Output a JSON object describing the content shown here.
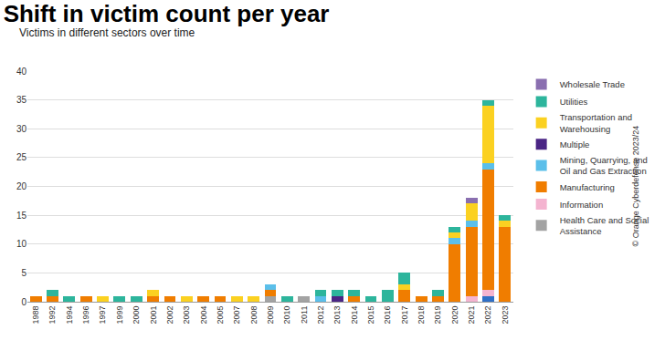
{
  "chart_data": {
    "type": "bar",
    "title": "Shift in victim count per year",
    "subtitle": "Victims in different sectors over time",
    "annotations": [
      "© Orange Cyberdefense 2023/24"
    ],
    "categories": [
      "1988",
      "1992",
      "1994",
      "1996",
      "1997",
      "1999",
      "2000",
      "2001",
      "2002",
      "2003",
      "2004",
      "2005",
      "2007",
      "2008",
      "2009",
      "2010",
      "2011",
      "2012",
      "2013",
      "2014",
      "2015",
      "2016",
      "2017",
      "2018",
      "2019",
      "2020",
      "2021",
      "2022",
      "2023"
    ],
    "stacked": true,
    "grid": true,
    "legend": "right",
    "ylim": [
      0,
      40
    ],
    "yticks": [
      0,
      5,
      10,
      15,
      20,
      25,
      30,
      35,
      40
    ],
    "series": [
      {
        "name": "Health Care and Social Assistance",
        "color": "#a3a3a3",
        "values": [
          0,
          0,
          0,
          0,
          0,
          0,
          0,
          0,
          0,
          0,
          0,
          0,
          0,
          0,
          1,
          0,
          1,
          0,
          0,
          0,
          0,
          0,
          0,
          0,
          0,
          0,
          0,
          0,
          0
        ]
      },
      {
        "name": null,
        "color": "#2f6fc6",
        "values": [
          0,
          0,
          0,
          0,
          0,
          0,
          0,
          0,
          0,
          0,
          0,
          0,
          0,
          0,
          0,
          0,
          0,
          0,
          0,
          0,
          0,
          0,
          0,
          0,
          0,
          0,
          0,
          1,
          0
        ]
      },
      {
        "name": "Information",
        "color": "#f4b4d0",
        "values": [
          0,
          0,
          0,
          0,
          0,
          0,
          0,
          0,
          0,
          0,
          0,
          0,
          0,
          0,
          0,
          0,
          0,
          0,
          0,
          0,
          0,
          0,
          0,
          0,
          0,
          0,
          1,
          1,
          0
        ]
      },
      {
        "name": "Manufacturing",
        "color": "#f07d00",
        "values": [
          1,
          1,
          0,
          1,
          0,
          0,
          0,
          1,
          1,
          0,
          1,
          1,
          0,
          0,
          1,
          0,
          0,
          0,
          0,
          1,
          0,
          0,
          2,
          1,
          1,
          10,
          12,
          21,
          13
        ]
      },
      {
        "name": "Mining, Quarrying, and Oil and Gas Extraction",
        "color": "#5bbfea",
        "values": [
          0,
          0,
          0,
          0,
          0,
          0,
          0,
          0,
          0,
          0,
          0,
          0,
          0,
          0,
          1,
          0,
          0,
          1,
          0,
          0,
          0,
          0,
          0,
          0,
          0,
          1,
          1,
          1,
          0
        ]
      },
      {
        "name": "Multiple",
        "color": "#4a2585",
        "values": [
          0,
          0,
          0,
          0,
          0,
          0,
          0,
          0,
          0,
          0,
          0,
          0,
          0,
          0,
          0,
          0,
          0,
          0,
          1,
          0,
          0,
          0,
          0,
          0,
          0,
          0,
          0,
          0,
          0
        ]
      },
      {
        "name": "Transportation and Warehousing",
        "color": "#fbd121",
        "values": [
          0,
          0,
          0,
          0,
          1,
          0,
          0,
          1,
          0,
          1,
          0,
          0,
          1,
          1,
          0,
          0,
          0,
          0,
          0,
          0,
          0,
          0,
          1,
          0,
          0,
          1,
          3,
          10,
          1
        ]
      },
      {
        "name": "Utilities",
        "color": "#2db59c",
        "values": [
          0,
          1,
          1,
          0,
          0,
          1,
          1,
          0,
          0,
          0,
          0,
          0,
          0,
          0,
          0,
          1,
          0,
          1,
          1,
          1,
          1,
          2,
          2,
          0,
          1,
          1,
          0,
          1,
          1
        ]
      },
      {
        "name": "Wholesale Trade",
        "color": "#8a6fb0",
        "values": [
          0,
          0,
          0,
          0,
          0,
          0,
          0,
          0,
          0,
          0,
          0,
          0,
          0,
          0,
          0,
          0,
          0,
          0,
          0,
          0,
          0,
          0,
          0,
          0,
          0,
          0,
          1,
          0,
          0
        ]
      }
    ]
  }
}
